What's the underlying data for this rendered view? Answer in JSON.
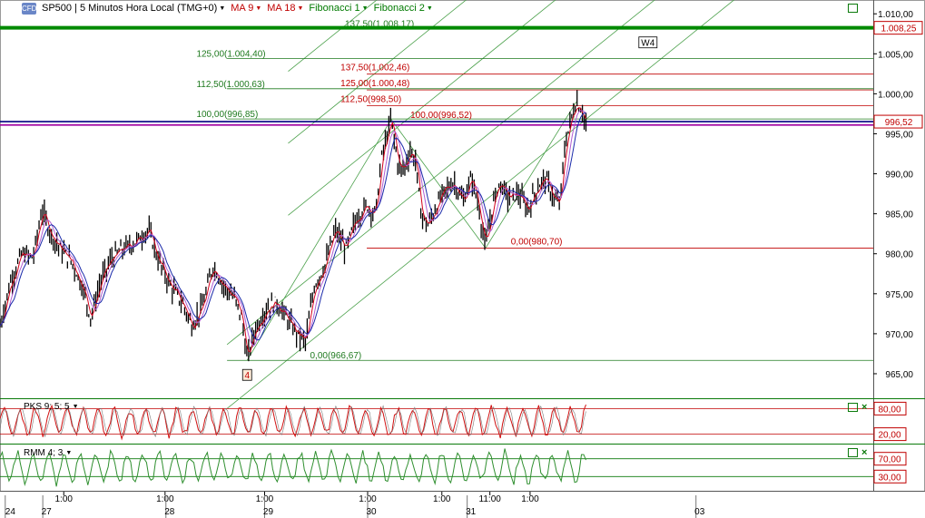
{
  "toolbar": {
    "logo_text": "CFD",
    "instrument": "SP500 | 5 Minutos Hora Local (TMG+0)",
    "ma1": "MA 9",
    "ma2": "MA 18",
    "fib1": "Fibonacci 1",
    "fib2": "Fibonacci 2"
  },
  "colors": {
    "price_bar": "#000000",
    "ma_fast": "#d4001a",
    "ma_slow": "#1a2aaa",
    "ma_soft": "#b15fd2",
    "fib1": "#1f7a1f",
    "fib2": "#c00000",
    "channel": "#4aa04a",
    "hline_green": "#008a00",
    "hline_blue": "#000080",
    "hline_magenta": "#a000a0",
    "osc_red": "#d01010",
    "osc_green": "#2f8f2f"
  },
  "chart_data": {
    "type": "line",
    "price_axis": {
      "ticks": [
        "1.010,00",
        "1.005,00",
        "1.000,00",
        "995,00",
        "990,00",
        "985,00",
        "980,00",
        "975,00",
        "970,00",
        "965,00"
      ],
      "tick_values": [
        1010,
        1005,
        1000,
        995,
        990,
        985,
        980,
        975,
        970,
        965
      ],
      "range": [
        962.5,
        1011.5
      ]
    },
    "price_markers": [
      {
        "label": "1.008,25",
        "value": 1008.25
      },
      {
        "label": "996,52",
        "value": 996.52
      }
    ],
    "horizontal_lines": [
      {
        "value": 1008.25,
        "color": "#008a00",
        "weight": "thick"
      },
      {
        "value": 996.52,
        "color": "#000080"
      },
      {
        "value": 996.1,
        "color": "#a000a0"
      }
    ],
    "time_axis": {
      "hour_labels": [
        {
          "text": "1:00",
          "at": 0.073
        },
        {
          "text": "1:00",
          "at": 0.189
        },
        {
          "text": "1:00",
          "at": 0.303
        },
        {
          "text": "1:00",
          "at": 0.421
        },
        {
          "text": "1:00",
          "at": 0.506
        },
        {
          "text": "11:00",
          "at": 0.561
        },
        {
          "text": "1:00",
          "at": 0.607
        }
      ],
      "day_labels": [
        {
          "text": "24",
          "at": 0.006
        },
        {
          "text": "27",
          "at": 0.049
        },
        {
          "text": "28",
          "at": 0.19
        },
        {
          "text": "29",
          "at": 0.303
        },
        {
          "text": "30",
          "at": 0.421
        },
        {
          "text": "31",
          "at": 0.535
        },
        {
          "text": "03",
          "at": 0.797
        }
      ]
    },
    "price_path": [
      {
        "t": 0.0,
        "v": 971.0
      },
      {
        "t": 0.012,
        "v": 976.5
      },
      {
        "t": 0.025,
        "v": 980.0
      },
      {
        "t": 0.038,
        "v": 979.5
      },
      {
        "t": 0.048,
        "v": 985.5
      },
      {
        "t": 0.058,
        "v": 982.5
      },
      {
        "t": 0.07,
        "v": 980.5
      },
      {
        "t": 0.082,
        "v": 979.0
      },
      {
        "t": 0.094,
        "v": 976.0
      },
      {
        "t": 0.104,
        "v": 972.0
      },
      {
        "t": 0.115,
        "v": 976.5
      },
      {
        "t": 0.128,
        "v": 979.5
      },
      {
        "t": 0.14,
        "v": 980.5
      },
      {
        "t": 0.155,
        "v": 981.5
      },
      {
        "t": 0.17,
        "v": 983.0
      },
      {
        "t": 0.182,
        "v": 979.0
      },
      {
        "t": 0.195,
        "v": 976.0
      },
      {
        "t": 0.208,
        "v": 974.0
      },
      {
        "t": 0.22,
        "v": 971.0
      },
      {
        "t": 0.232,
        "v": 973.5
      },
      {
        "t": 0.244,
        "v": 978.5
      },
      {
        "t": 0.256,
        "v": 976.0
      },
      {
        "t": 0.268,
        "v": 974.5
      },
      {
        "t": 0.277,
        "v": 972.0
      },
      {
        "t": 0.283,
        "v": 966.7
      },
      {
        "t": 0.292,
        "v": 970.5
      },
      {
        "t": 0.304,
        "v": 973.0
      },
      {
        "t": 0.316,
        "v": 974.0
      },
      {
        "t": 0.328,
        "v": 972.0
      },
      {
        "t": 0.34,
        "v": 970.0
      },
      {
        "t": 0.35,
        "v": 969.0
      },
      {
        "t": 0.36,
        "v": 976.0
      },
      {
        "t": 0.372,
        "v": 978.5
      },
      {
        "t": 0.384,
        "v": 983.0
      },
      {
        "t": 0.396,
        "v": 980.5
      },
      {
        "t": 0.408,
        "v": 984.5
      },
      {
        "t": 0.42,
        "v": 986.0
      },
      {
        "t": 0.43,
        "v": 985.0
      },
      {
        "t": 0.437,
        "v": 992.0
      },
      {
        "t": 0.448,
        "v": 996.8
      },
      {
        "t": 0.456,
        "v": 991.0
      },
      {
        "t": 0.462,
        "v": 990.5
      },
      {
        "t": 0.47,
        "v": 993.0
      },
      {
        "t": 0.476,
        "v": 991.5
      },
      {
        "t": 0.482,
        "v": 985.0
      },
      {
        "t": 0.49,
        "v": 983.5
      },
      {
        "t": 0.5,
        "v": 986.0
      },
      {
        "t": 0.51,
        "v": 988.0
      },
      {
        "t": 0.52,
        "v": 989.0
      },
      {
        "t": 0.53,
        "v": 986.5
      },
      {
        "t": 0.54,
        "v": 989.5
      },
      {
        "t": 0.548,
        "v": 986.0
      },
      {
        "t": 0.556,
        "v": 980.7
      },
      {
        "t": 0.564,
        "v": 986.0
      },
      {
        "t": 0.572,
        "v": 989.0
      },
      {
        "t": 0.582,
        "v": 987.0
      },
      {
        "t": 0.594,
        "v": 987.5
      },
      {
        "t": 0.604,
        "v": 985.5
      },
      {
        "t": 0.614,
        "v": 988.0
      },
      {
        "t": 0.624,
        "v": 989.5
      },
      {
        "t": 0.634,
        "v": 987.0
      },
      {
        "t": 0.641,
        "v": 986.0
      },
      {
        "t": 0.647,
        "v": 993.5
      },
      {
        "t": 0.654,
        "v": 997.0
      },
      {
        "t": 0.66,
        "v": 999.0
      },
      {
        "t": 0.666,
        "v": 998.0
      },
      {
        "t": 0.671,
        "v": 996.3
      }
    ],
    "fibonacci_1": [
      {
        "label": "137,50(1.008,17)",
        "value": 1008.17
      },
      {
        "label": "125,00(1.004,40)",
        "value": 1004.4
      },
      {
        "label": "112,50(1.000,63)",
        "value": 1000.63
      },
      {
        "label": "100,00(996,85)",
        "value": 996.85
      },
      {
        "label": "0,00(966,67)",
        "value": 966.67
      }
    ],
    "fibonacci_2": [
      {
        "label": "137,50(1.002,46)",
        "value": 1002.46
      },
      {
        "label": "125,00(1.000,48)",
        "value": 1000.48
      },
      {
        "label": "112,50(998,50)",
        "value": 998.5
      },
      {
        "label": "100,00(996,52)",
        "value": 996.52
      },
      {
        "label": "0,00(980,70)",
        "value": 980.7
      }
    ],
    "wave_labels": [
      {
        "text": "4",
        "t": 0.283,
        "v": 966.67
      },
      {
        "text": "W4",
        "t": 0.742,
        "v": 1006.2
      }
    ],
    "oscillators": [
      {
        "name": "PKS 9; 5; 5",
        "levels": [
          80,
          20
        ],
        "level_labels": [
          "80,00",
          "20,00"
        ],
        "range": [
          0,
          100
        ]
      },
      {
        "name": "RMM 4; 3",
        "levels": [
          70,
          30
        ],
        "level_labels": [
          "70,00",
          "30,00"
        ],
        "range": [
          0,
          100
        ]
      }
    ]
  }
}
